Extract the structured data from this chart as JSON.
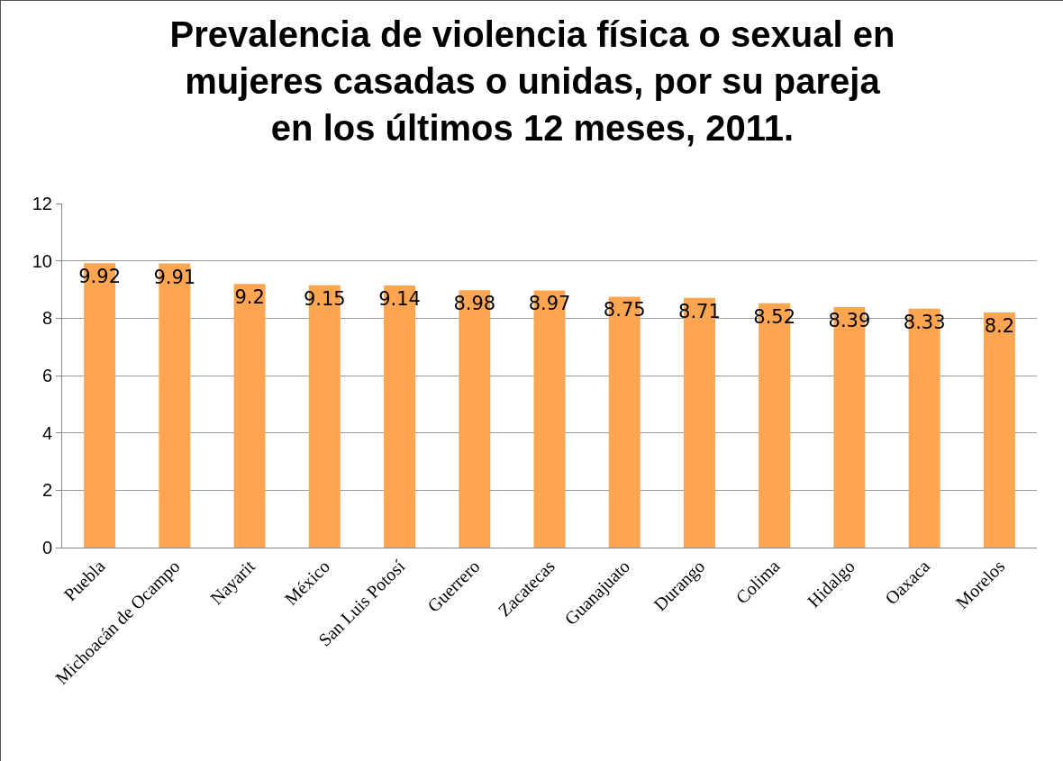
{
  "chart_data": {
    "type": "bar",
    "title": "Prevalencia de violencia física o sexual en\nmujeres casadas o unidas, por su pareja\nen los últimos 12 meses, 2011.",
    "categories": [
      "Puebla",
      "Michoacán de Ocampo",
      "Nayarit",
      "México",
      "San Luis Potosí",
      "Guerrero",
      "Zacatecas",
      "Guanajuato",
      "Durango",
      "Colima",
      "Hidalgo",
      "Oaxaca",
      "Morelos"
    ],
    "values": [
      9.92,
      9.91,
      9.2,
      9.15,
      9.14,
      8.98,
      8.97,
      8.75,
      8.71,
      8.52,
      8.39,
      8.33,
      8.2
    ],
    "color": "#fda550",
    "ylim": [
      0,
      12
    ],
    "yticks": [
      0,
      2,
      4,
      6,
      8,
      10,
      12
    ],
    "grid": "y",
    "data_labels": true,
    "legend": false
  }
}
